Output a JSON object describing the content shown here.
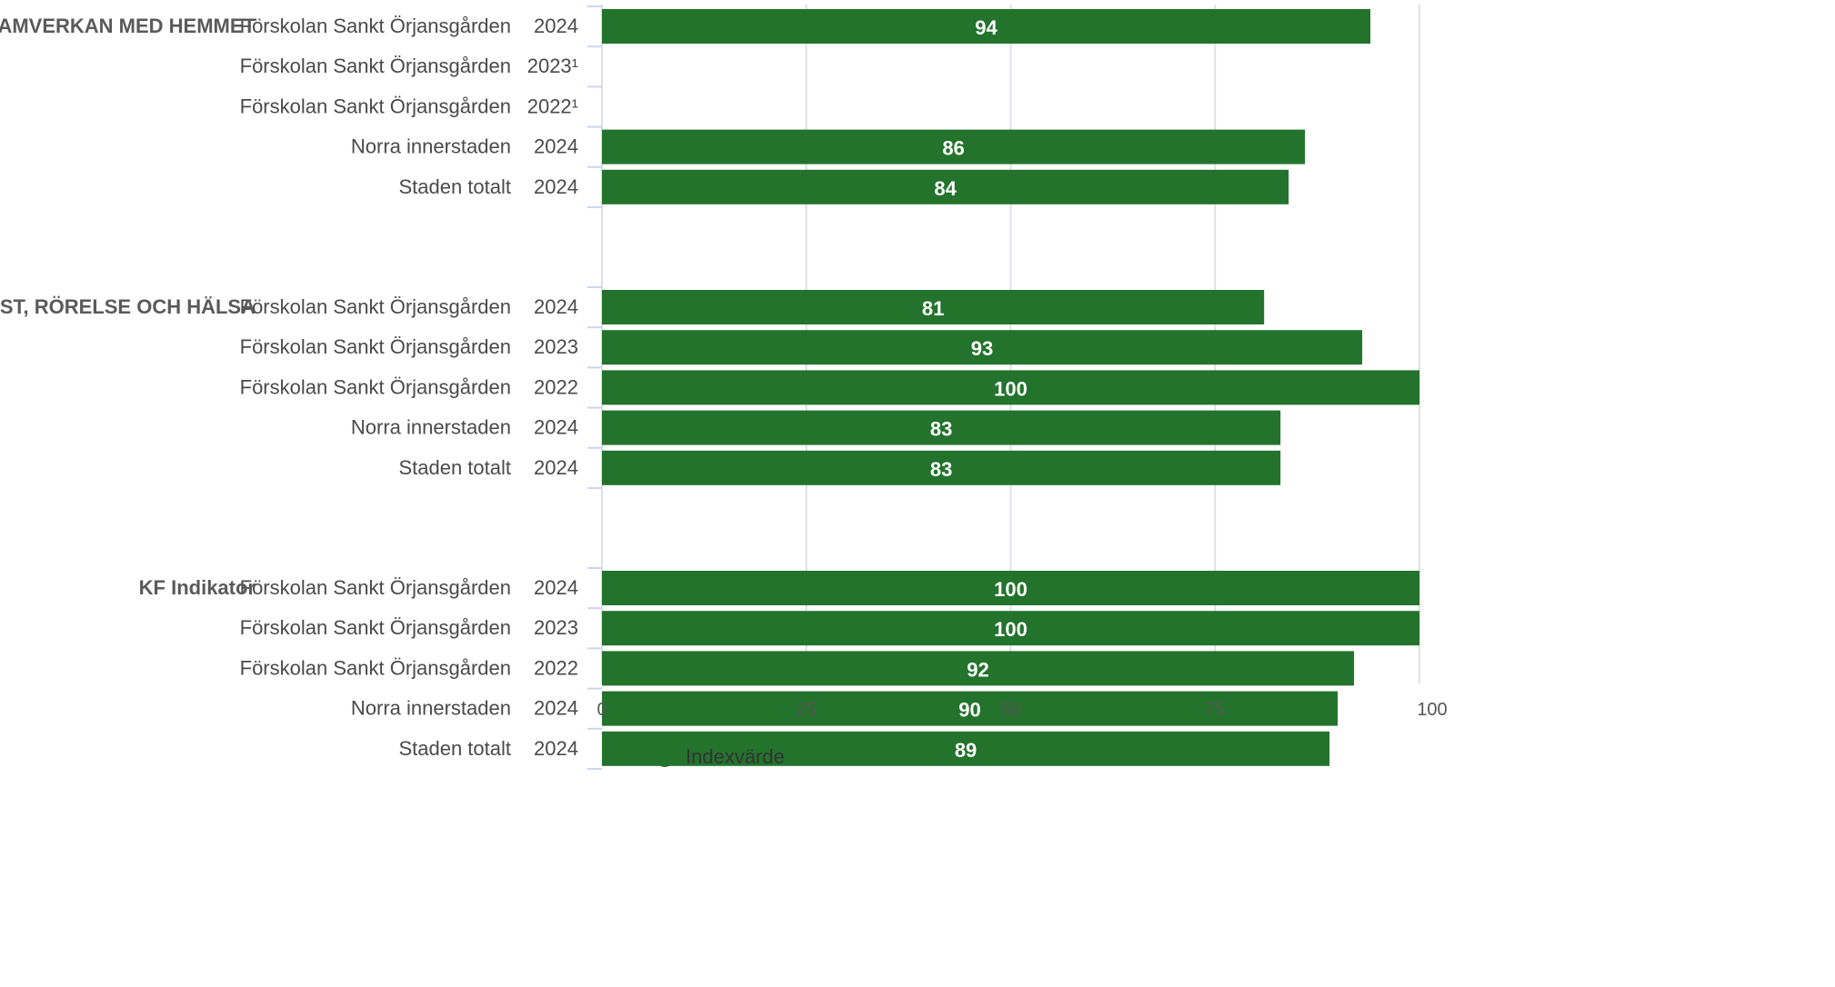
{
  "chart_data": {
    "type": "bar",
    "orientation": "horizontal",
    "xlim": [
      0,
      100
    ],
    "x_ticks": [
      "0",
      "25",
      "50",
      "75",
      "100"
    ],
    "grid": true,
    "legend_position": "bottom",
    "bar_color": "#23732c",
    "groups": [
      {
        "label": "SAMVERKAN MED HEMMET",
        "rows": [
          {
            "name": "Förskolan Sankt Örjansgården",
            "year": "2024",
            "value": 94
          },
          {
            "name": "Förskolan Sankt Örjansgården",
            "year": "2023¹",
            "value": null
          },
          {
            "name": "Förskolan Sankt Örjansgården",
            "year": "2022¹",
            "value": null
          },
          {
            "name": "Norra innerstaden",
            "year": "2024",
            "value": 86
          },
          {
            "name": "Staden totalt",
            "year": "2024",
            "value": 84
          }
        ]
      },
      {
        "label": "KOST, RÖRELSE OCH HÄLSA",
        "rows": [
          {
            "name": "Förskolan Sankt Örjansgården",
            "year": "2024",
            "value": 81
          },
          {
            "name": "Förskolan Sankt Örjansgården",
            "year": "2023",
            "value": 93
          },
          {
            "name": "Förskolan Sankt Örjansgården",
            "year": "2022",
            "value": 100
          },
          {
            "name": "Norra innerstaden",
            "year": "2024",
            "value": 83
          },
          {
            "name": "Staden totalt",
            "year": "2024",
            "value": 83
          }
        ]
      },
      {
        "label": "KF Indikator",
        "rows": [
          {
            "name": "Förskolan Sankt Örjansgården",
            "year": "2024",
            "value": 100
          },
          {
            "name": "Förskolan Sankt Örjansgården",
            "year": "2023",
            "value": 100
          },
          {
            "name": "Förskolan Sankt Örjansgården",
            "year": "2022",
            "value": 92
          },
          {
            "name": "Norra innerstaden",
            "year": "2024",
            "value": 90
          },
          {
            "name": "Staden totalt",
            "year": "2024",
            "value": 89
          }
        ]
      }
    ],
    "series": [
      {
        "name": "Indexvärde"
      }
    ]
  }
}
